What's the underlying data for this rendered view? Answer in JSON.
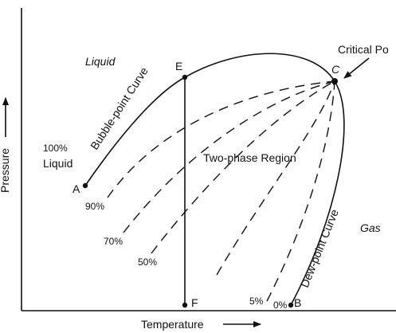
{
  "axes": {
    "x_label": "Temperature",
    "y_label": "Pressure"
  },
  "regions": {
    "liquid": "Liquid",
    "gas": "Gas",
    "two_phase": "Two-phase Region"
  },
  "curves": {
    "bubble_point": "Bubble-point Curve",
    "dew_point": "Dew-point Curve"
  },
  "critical_point": {
    "label": "Critical Po",
    "letter": "C"
  },
  "points": {
    "A": "A",
    "B": "B",
    "E": "E",
    "F": "F"
  },
  "quality_lines": {
    "q100_line1": "100%",
    "q100_line2": "Liquid",
    "q90": "90%",
    "q70": "70%",
    "q50": "50%",
    "q5": "5%",
    "q0": "0%"
  }
}
